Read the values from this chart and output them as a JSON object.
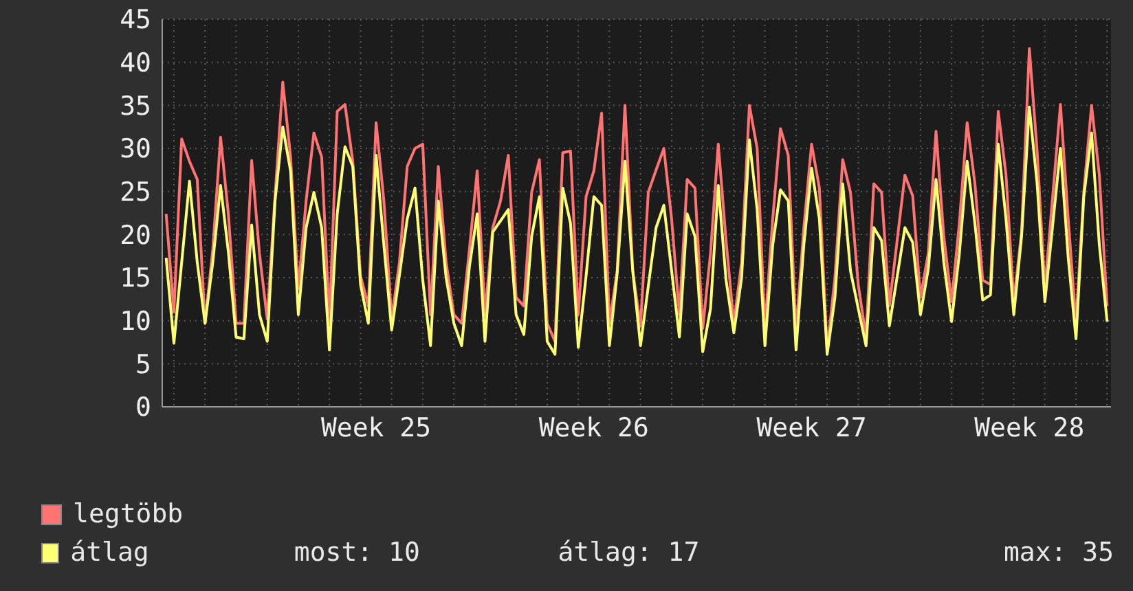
{
  "chart_data": {
    "type": "line",
    "categories": [
      null,
      null,
      null,
      null,
      null,
      null,
      null,
      null,
      null,
      null,
      null,
      null,
      null,
      null,
      null,
      null,
      null,
      null,
      null,
      null,
      null,
      null,
      null,
      null,
      null,
      null,
      null,
      "Week 25",
      null,
      null,
      null,
      null,
      null,
      null,
      null,
      null,
      null,
      null,
      null,
      null,
      null,
      null,
      null,
      null,
      null,
      null,
      null,
      null,
      null,
      null,
      null,
      null,
      null,
      null,
      null,
      "Week 26",
      null,
      null,
      null,
      null,
      null,
      null,
      null,
      null,
      null,
      null,
      null,
      null,
      null,
      null,
      null,
      null,
      null,
      null,
      null,
      null,
      null,
      null,
      null,
      null,
      null,
      null,
      null,
      "Week 27",
      null,
      null,
      null,
      null,
      null,
      null,
      null,
      null,
      null,
      null,
      null,
      null,
      null,
      null,
      null,
      null,
      null,
      null,
      null,
      null,
      null,
      null,
      null,
      null,
      null,
      null,
      null,
      "Week 28",
      null,
      null,
      null,
      null,
      null,
      null,
      null,
      null,
      null,
      null
    ],
    "ylim": [
      0,
      45
    ],
    "yticks": [
      0,
      5,
      10,
      15,
      20,
      25,
      30,
      35,
      40,
      45
    ],
    "grid": true,
    "legend": "bottom",
    "marker": "none",
    "line_style": "solid",
    "annotations": [
      "most: 10",
      "átlag: 17",
      "max: 35"
    ],
    "series": [
      {
        "name": "legtöbb",
        "color": "#ff7373",
        "values": [
          22.4,
          11,
          31.1,
          28.5,
          26.4,
          9.7,
          18.3,
          31.3,
          22.4,
          9.7,
          9.7,
          28.6,
          17.8,
          10.2,
          24.4,
          37.7,
          29,
          13.7,
          23.9,
          31.8,
          29,
          9.7,
          34.3,
          35.1,
          28.5,
          15.2,
          11.7,
          33,
          23.9,
          10.2,
          16.8,
          27.9,
          30,
          30.5,
          10.7,
          27.9,
          16.8,
          10.7,
          9.7,
          18.3,
          27.4,
          10.7,
          20.8,
          23.9,
          29.2,
          12.7,
          11.7,
          24.9,
          28.7,
          9.7,
          7.6,
          29.5,
          29.7,
          10.7,
          24.4,
          27.4,
          34.1,
          9.7,
          15.8,
          35,
          15.8,
          9.4,
          24.9,
          27.5,
          30,
          21.8,
          10.7,
          26.4,
          25.4,
          9.1,
          17.8,
          30.5,
          19.3,
          9.7,
          16.8,
          35,
          30,
          9.1,
          21.8,
          32.3,
          29.2,
          8.6,
          20.8,
          30.5,
          25.4,
          6.6,
          15,
          28.7,
          24.9,
          14.2,
          8.1,
          25.9,
          24.9,
          11.7,
          19.3,
          26.9,
          24.5,
          12.7,
          17.8,
          32,
          19.8,
          12.2,
          21.3,
          33,
          25.9,
          14.7,
          14.2,
          34.3,
          26.9,
          12.2,
          20.3,
          41.6,
          29.7,
          13.7,
          24.4,
          35.1,
          21.8,
          9.7,
          24.9,
          35,
          26.9,
          11.7
        ]
      },
      {
        "name": "átlag",
        "color": "#ffff73",
        "values": [
          17.3,
          7.4,
          16.8,
          26.2,
          16.8,
          9.7,
          16.8,
          25.7,
          18,
          8.1,
          7.9,
          21.1,
          10.7,
          7.6,
          23.9,
          32.5,
          27.4,
          10.7,
          20.8,
          24.9,
          20.8,
          6.6,
          22.4,
          30.2,
          27.9,
          14.2,
          9.7,
          29.2,
          18.8,
          8.9,
          15.3,
          21.8,
          25.4,
          14.7,
          7.1,
          23.9,
          15,
          9.7,
          7.1,
          16.3,
          22.4,
          7.6,
          20.3,
          21.6,
          22.9,
          10.7,
          8.4,
          19.8,
          24.4,
          7.6,
          6.1,
          25.4,
          21.3,
          6.9,
          15.2,
          24.4,
          23.4,
          7.1,
          15.5,
          28.5,
          15.8,
          7.1,
          14,
          20.8,
          23.4,
          15.8,
          8.1,
          22.4,
          19.8,
          6.4,
          11.4,
          25.7,
          14.7,
          8.6,
          15,
          31,
          22.9,
          7.1,
          18.8,
          25.2,
          23.9,
          6.6,
          18.8,
          27.7,
          21.8,
          6.1,
          12.7,
          25.9,
          15.8,
          11.4,
          7.1,
          20.8,
          19.3,
          9.4,
          15.1,
          20.8,
          19.1,
          10.7,
          16,
          26.4,
          16.8,
          9.9,
          17.8,
          28.5,
          21.3,
          12.4,
          13,
          30.5,
          21.8,
          10.7,
          19.8,
          34.8,
          25.9,
          12.2,
          21.1,
          30,
          17.3,
          7.9,
          24.4,
          31.8,
          18.8,
          9.9
        ]
      }
    ]
  }
}
